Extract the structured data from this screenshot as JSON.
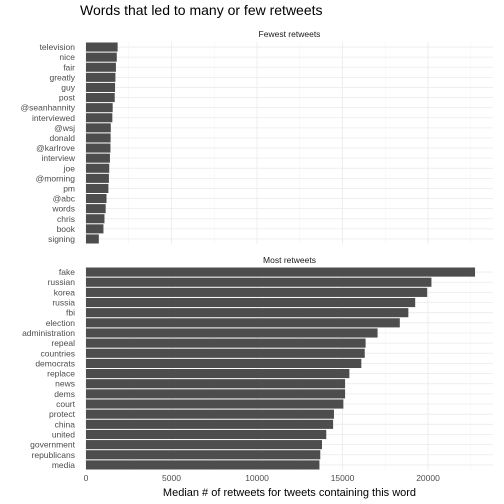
{
  "chart_data": {
    "type": "bar",
    "orientation": "horizontal",
    "title": "Words that led to many or few retweets",
    "xlabel": "Median # of retweets for tweets containing this word",
    "ylabel": "",
    "xlim": [
      0,
      23800
    ],
    "x_ticks": [
      0,
      5000,
      10000,
      15000,
      20000
    ],
    "x_tick_labels": [
      "0",
      "5000",
      "10000",
      "15000",
      "20000"
    ],
    "grid": true,
    "bar_color": "#4d4d4d",
    "panels": [
      {
        "strip": "Fewest retweets",
        "categories": [
          "television",
          "nice",
          "fair",
          "greatly",
          "guy",
          "post",
          "@seanhannity",
          "interviewed",
          "@wsj",
          "donald",
          "@karlrove",
          "interview",
          "joe",
          "@morning",
          "pm",
          "@abc",
          "words",
          "chris",
          "book",
          "signing"
        ],
        "values": [
          1850,
          1800,
          1750,
          1720,
          1700,
          1680,
          1560,
          1540,
          1450,
          1440,
          1430,
          1400,
          1360,
          1340,
          1310,
          1200,
          1150,
          1080,
          1020,
          750
        ]
      },
      {
        "strip": "Most retweets",
        "categories": [
          "fake",
          "russian",
          "korea",
          "russia",
          "fbi",
          "election",
          "administration",
          "repeal",
          "countries",
          "democrats",
          "replace",
          "news",
          "dems",
          "court",
          "protect",
          "china",
          "united",
          "government",
          "republicans",
          "media"
        ],
        "values": [
          22750,
          20200,
          19950,
          19250,
          18850,
          18350,
          17050,
          16350,
          16300,
          16100,
          15400,
          15150,
          15150,
          15050,
          14500,
          14450,
          14050,
          13800,
          13700,
          13650
        ]
      }
    ]
  }
}
